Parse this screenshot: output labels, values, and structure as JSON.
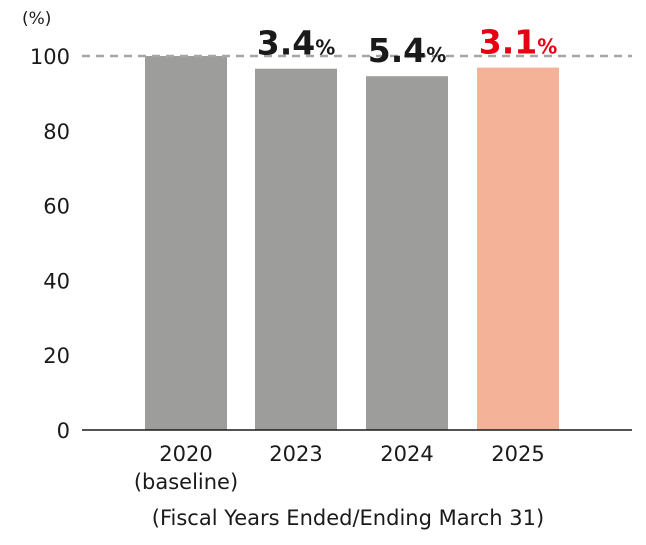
{
  "chart_data": {
    "type": "bar",
    "unit_label": "(%)",
    "categories": [
      [
        "2020",
        "(baseline)"
      ],
      [
        "2023"
      ],
      [
        "2024"
      ],
      [
        "2025"
      ]
    ],
    "values": [
      100,
      96.6,
      94.6,
      96.9
    ],
    "data_labels": [
      null,
      {
        "number": "3.4",
        "suffix": "%",
        "color": "#1a1a1a"
      },
      {
        "number": "5.4",
        "suffix": "%",
        "color": "#1a1a1a"
      },
      {
        "number": "3.1",
        "suffix": "%",
        "color": "#e60012"
      }
    ],
    "bar_colors": [
      "#9d9e9c",
      "#9d9e9c",
      "#9d9e9c",
      "#f4b399"
    ],
    "reference_line": {
      "value": 100,
      "style": "dashed",
      "color": "#a6a6a6"
    },
    "ylim": [
      0,
      100
    ],
    "yticks": [
      0,
      20,
      40,
      60,
      80,
      100
    ],
    "xlabel": "(Fiscal Years Ended/Ending March 31)",
    "ylabel": "",
    "title": "",
    "grid": false,
    "legend": "none"
  }
}
